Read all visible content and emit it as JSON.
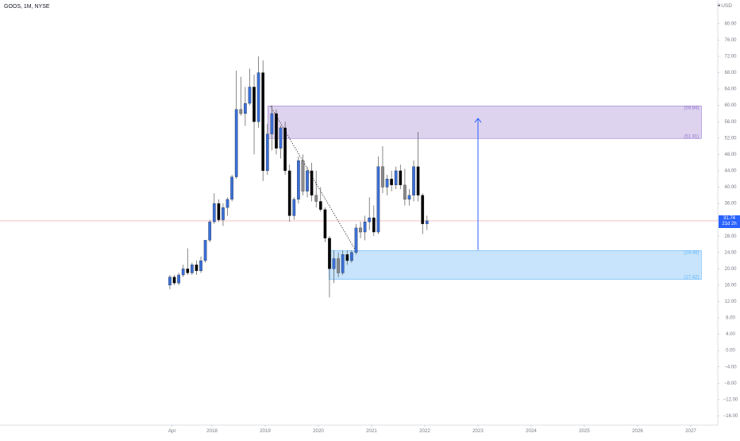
{
  "header": {
    "symbol_title": "GOOS, 1M, NYSE",
    "currency": "USD"
  },
  "last_price": {
    "value": 31.74,
    "label": "31.74",
    "countdown": "21d 2h",
    "color": "#2962ff"
  },
  "colors": {
    "bull": "#3a6fd8",
    "bear": "#000000",
    "neutral": "#8a8a8a",
    "wick": "#555555",
    "supply_zone": "#b39ddb",
    "demand_zone": "#90caf9",
    "arrow": "#2962ff",
    "price_line": "#e57373",
    "grid_text": "#787b86"
  },
  "chart_data": {
    "type": "candlestick",
    "title": "GOOS, 1M, NYSE",
    "xlabel": "",
    "ylabel": "",
    "ylim": [
      -18,
      84
    ],
    "grid": false,
    "y_ticks": [
      80,
      76,
      72,
      68,
      64,
      60,
      56,
      52,
      48,
      44,
      40,
      36,
      32,
      28,
      24,
      20,
      16,
      12,
      8,
      4,
      0,
      -4,
      -8,
      -12,
      -16
    ],
    "y_tick_labels": [
      "80.00",
      "76.00",
      "72.00",
      "68.00",
      "64.00",
      "60.00",
      "56.00",
      "52.00",
      "48.00",
      "44.00",
      "40.00",
      "36.00",
      "32.00",
      "28.00",
      "24.00",
      "20.00",
      "16.00",
      "12.00",
      "8.00",
      "4.00",
      "0.00",
      "−4.00",
      "−8.00",
      "−12.00",
      "−16.00"
    ],
    "x_ticks": [
      {
        "label": "Apr",
        "year": 2017.25
      },
      {
        "label": "2018",
        "year": 2018.0
      },
      {
        "label": "2019",
        "year": 2019.0
      },
      {
        "label": "2020",
        "year": 2020.0
      },
      {
        "label": "2021",
        "year": 2021.0
      },
      {
        "label": "2022",
        "year": 2022.0
      },
      {
        "label": "2023",
        "year": 2023.0
      },
      {
        "label": "2024",
        "year": 2024.0
      },
      {
        "label": "2025",
        "year": 2025.0
      },
      {
        "label": "2026",
        "year": 2026.0
      },
      {
        "label": "2027",
        "year": 2027.0
      }
    ],
    "candles": [
      {
        "date": "2017-03",
        "o": 16.0,
        "h": 18.5,
        "l": 15.0,
        "c": 18.0,
        "dir": "up"
      },
      {
        "date": "2017-04",
        "o": 18.0,
        "h": 18.5,
        "l": 16.0,
        "c": 16.5,
        "dir": "down"
      },
      {
        "date": "2017-05",
        "o": 16.5,
        "h": 19.0,
        "l": 16.0,
        "c": 18.5,
        "dir": "up"
      },
      {
        "date": "2017-06",
        "o": 18.5,
        "h": 21.0,
        "l": 18.0,
        "c": 20.0,
        "dir": "up"
      },
      {
        "date": "2017-07",
        "o": 20.0,
        "h": 25.0,
        "l": 18.5,
        "c": 19.0,
        "dir": "down"
      },
      {
        "date": "2017-08",
        "o": 19.0,
        "h": 21.5,
        "l": 18.5,
        "c": 21.0,
        "dir": "up"
      },
      {
        "date": "2017-09",
        "o": 21.0,
        "h": 22.0,
        "l": 18.5,
        "c": 19.5,
        "dir": "down"
      },
      {
        "date": "2017-10",
        "o": 19.5,
        "h": 23.0,
        "l": 19.0,
        "c": 22.0,
        "dir": "up"
      },
      {
        "date": "2017-11",
        "o": 22.0,
        "h": 27.0,
        "l": 21.5,
        "c": 27.0,
        "dir": "up"
      },
      {
        "date": "2017-12",
        "o": 27.0,
        "h": 32.0,
        "l": 26.5,
        "c": 31.5,
        "dir": "up"
      },
      {
        "date": "2018-01",
        "o": 31.5,
        "h": 38.5,
        "l": 31.0,
        "c": 36.0,
        "dir": "up"
      },
      {
        "date": "2018-02",
        "o": 36.0,
        "h": 37.0,
        "l": 31.5,
        "c": 32.0,
        "dir": "down"
      },
      {
        "date": "2018-03",
        "o": 32.0,
        "h": 36.0,
        "l": 30.5,
        "c": 35.0,
        "dir": "up"
      },
      {
        "date": "2018-04",
        "o": 35.0,
        "h": 37.5,
        "l": 33.0,
        "c": 37.0,
        "dir": "up"
      },
      {
        "date": "2018-05",
        "o": 37.0,
        "h": 43.0,
        "l": 36.5,
        "c": 42.5,
        "dir": "up"
      },
      {
        "date": "2018-06",
        "o": 42.5,
        "h": 68.5,
        "l": 42.0,
        "c": 59.0,
        "dir": "up"
      },
      {
        "date": "2018-07",
        "o": 59.0,
        "h": 67.0,
        "l": 57.5,
        "c": 58.0,
        "dir": "down"
      },
      {
        "date": "2018-08",
        "o": 58.0,
        "h": 64.5,
        "l": 55.0,
        "c": 60.5,
        "dir": "up"
      },
      {
        "date": "2018-09",
        "o": 60.5,
        "h": 69.0,
        "l": 60.0,
        "c": 64.5,
        "dir": "up"
      },
      {
        "date": "2018-10",
        "o": 64.5,
        "h": 67.5,
        "l": 48.0,
        "c": 56.0,
        "dir": "down"
      },
      {
        "date": "2018-11",
        "o": 56.0,
        "h": 72.0,
        "l": 54.5,
        "c": 68.0,
        "dir": "up"
      },
      {
        "date": "2018-12",
        "o": 68.0,
        "h": 71.0,
        "l": 41.5,
        "c": 44.0,
        "dir": "down"
      },
      {
        "date": "2019-01",
        "o": 44.0,
        "h": 55.5,
        "l": 43.0,
        "c": 53.0,
        "dir": "up"
      },
      {
        "date": "2019-02",
        "o": 53.0,
        "h": 60.0,
        "l": 49.0,
        "c": 58.0,
        "dir": "up"
      },
      {
        "date": "2019-03",
        "o": 58.0,
        "h": 59.0,
        "l": 48.0,
        "c": 49.5,
        "dir": "down"
      },
      {
        "date": "2019-04",
        "o": 49.5,
        "h": 55.0,
        "l": 47.0,
        "c": 54.5,
        "dir": "up"
      },
      {
        "date": "2019-05",
        "o": 54.5,
        "h": 56.0,
        "l": 43.0,
        "c": 44.0,
        "dir": "down"
      },
      {
        "date": "2019-06",
        "o": 44.0,
        "h": 45.5,
        "l": 31.5,
        "c": 33.0,
        "dir": "down"
      },
      {
        "date": "2019-07",
        "o": 33.0,
        "h": 37.5,
        "l": 32.0,
        "c": 37.0,
        "dir": "up"
      },
      {
        "date": "2019-08",
        "o": 37.0,
        "h": 47.5,
        "l": 36.0,
        "c": 46.5,
        "dir": "up"
      },
      {
        "date": "2019-09",
        "o": 46.5,
        "h": 48.0,
        "l": 38.0,
        "c": 39.0,
        "dir": "down"
      },
      {
        "date": "2019-10",
        "o": 39.0,
        "h": 45.0,
        "l": 37.5,
        "c": 44.0,
        "dir": "up"
      },
      {
        "date": "2019-11",
        "o": 44.0,
        "h": 46.0,
        "l": 36.5,
        "c": 38.0,
        "dir": "down"
      },
      {
        "date": "2019-12",
        "o": 38.0,
        "h": 44.0,
        "l": 35.0,
        "c": 36.5,
        "dir": "down"
      },
      {
        "date": "2020-01",
        "o": 36.5,
        "h": 40.0,
        "l": 34.0,
        "c": 34.5,
        "dir": "down"
      },
      {
        "date": "2020-02",
        "o": 34.5,
        "h": 35.0,
        "l": 26.5,
        "c": 27.5,
        "dir": "down"
      },
      {
        "date": "2020-03",
        "o": 27.5,
        "h": 28.0,
        "l": 13.0,
        "c": 20.0,
        "dir": "down"
      },
      {
        "date": "2020-04",
        "o": 20.0,
        "h": 24.5,
        "l": 16.5,
        "c": 22.5,
        "dir": "up"
      },
      {
        "date": "2020-05",
        "o": 22.5,
        "h": 24.0,
        "l": 18.0,
        "c": 19.0,
        "dir": "down"
      },
      {
        "date": "2020-06",
        "o": 19.0,
        "h": 24.5,
        "l": 18.5,
        "c": 23.5,
        "dir": "up"
      },
      {
        "date": "2020-07",
        "o": 23.5,
        "h": 24.5,
        "l": 21.0,
        "c": 22.0,
        "dir": "down"
      },
      {
        "date": "2020-08",
        "o": 22.0,
        "h": 24.5,
        "l": 21.5,
        "c": 24.0,
        "dir": "up"
      },
      {
        "date": "2020-09",
        "o": 24.0,
        "h": 31.0,
        "l": 23.5,
        "c": 30.0,
        "dir": "up"
      },
      {
        "date": "2020-10",
        "o": 30.0,
        "h": 31.5,
        "l": 27.5,
        "c": 29.0,
        "dir": "down"
      },
      {
        "date": "2020-11",
        "o": 29.0,
        "h": 33.0,
        "l": 27.0,
        "c": 31.5,
        "dir": "up"
      },
      {
        "date": "2020-12",
        "o": 31.5,
        "h": 37.5,
        "l": 29.5,
        "c": 32.5,
        "dir": "up"
      },
      {
        "date": "2021-01",
        "o": 32.5,
        "h": 35.5,
        "l": 28.0,
        "c": 29.0,
        "dir": "down"
      },
      {
        "date": "2021-02",
        "o": 29.0,
        "h": 47.5,
        "l": 28.5,
        "c": 45.0,
        "dir": "up"
      },
      {
        "date": "2021-03",
        "o": 45.0,
        "h": 50.0,
        "l": 38.5,
        "c": 40.0,
        "dir": "down"
      },
      {
        "date": "2021-04",
        "o": 40.0,
        "h": 43.0,
        "l": 38.0,
        "c": 42.0,
        "dir": "up"
      },
      {
        "date": "2021-05",
        "o": 42.0,
        "h": 44.0,
        "l": 39.0,
        "c": 40.5,
        "dir": "down"
      },
      {
        "date": "2021-06",
        "o": 40.5,
        "h": 45.0,
        "l": 39.5,
        "c": 44.0,
        "dir": "up"
      },
      {
        "date": "2021-07",
        "o": 44.0,
        "h": 45.5,
        "l": 39.5,
        "c": 40.5,
        "dir": "down"
      },
      {
        "date": "2021-08",
        "o": 40.5,
        "h": 44.5,
        "l": 35.5,
        "c": 37.0,
        "dir": "down"
      },
      {
        "date": "2021-09",
        "o": 37.0,
        "h": 39.5,
        "l": 35.5,
        "c": 38.0,
        "dir": "up"
      },
      {
        "date": "2021-10",
        "o": 38.0,
        "h": 46.5,
        "l": 36.5,
        "c": 45.0,
        "dir": "up"
      },
      {
        "date": "2021-11",
        "o": 45.0,
        "h": 53.5,
        "l": 36.5,
        "c": 38.0,
        "dir": "down"
      },
      {
        "date": "2021-12",
        "o": 38.0,
        "h": 38.5,
        "l": 28.5,
        "c": 31.0,
        "dir": "down"
      },
      {
        "date": "2022-01",
        "o": 31.0,
        "h": 33.0,
        "l": 29.5,
        "c": 31.74,
        "dir": "up"
      }
    ],
    "zones": [
      {
        "name": "supply",
        "year_start": 2019.05,
        "year_end": 2027.2,
        "top": 59.84,
        "bottom": 51.91,
        "top_label": "59.84",
        "bottom_label": "51.91"
      },
      {
        "name": "demand",
        "year_start": 2020.2,
        "year_end": 2027.2,
        "top": 24.48,
        "bottom": 17.42,
        "top_label": "24.48",
        "bottom_label": "17.42"
      }
    ],
    "trendline": {
      "year_start": 2019.1,
      "price_start": 59.8,
      "year_end": 2020.7,
      "price_end": 24.5
    },
    "arrow": {
      "year": 2023.0,
      "price_start": 24.6,
      "price_end": 56.8
    }
  }
}
